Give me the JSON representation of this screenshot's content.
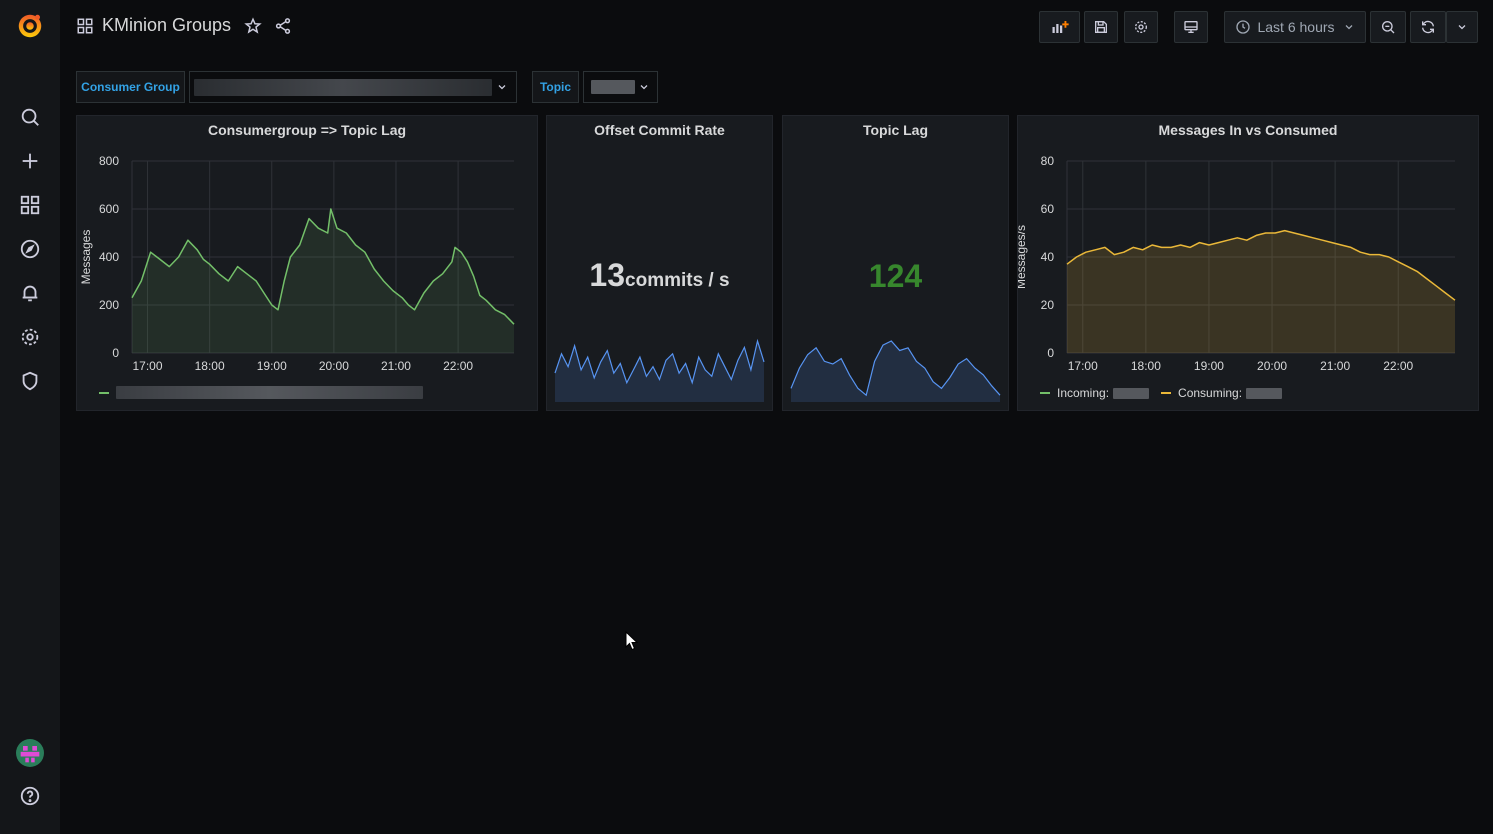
{
  "dashboard": {
    "title": "KMinion Groups"
  },
  "toolbar": {
    "time_range": "Last 6 hours"
  },
  "variables": {
    "consumer_group_label": "Consumer Group",
    "topic_label": "Topic"
  },
  "colors": {
    "lag_series": "#73bf69",
    "consume_series": "#eab839",
    "spark": "#5794f2",
    "value_green": "#37872d",
    "var_blue": "#33a2e5"
  },
  "panels": {
    "lag_chart": {
      "title": "Consumergroup => Topic Lag",
      "ylabel": "Messages"
    },
    "offset_commit": {
      "title": "Offset Commit Rate",
      "value": "13",
      "unit": "commits / s"
    },
    "topic_lag": {
      "title": "Topic Lag",
      "value": "124"
    },
    "messages_chart": {
      "title": "Messages In vs Consumed",
      "ylabel": "Messages/s",
      "legend_incoming": "Incoming:",
      "legend_consuming": "Consuming:"
    }
  },
  "chart_data": [
    {
      "type": "area",
      "title": "Consumergroup => Topic Lag",
      "ylabel": "Messages",
      "xticks": [
        "17:00",
        "18:00",
        "19:00",
        "20:00",
        "21:00",
        "22:00"
      ],
      "yticks": [
        "0",
        "200",
        "400",
        "600",
        "800"
      ],
      "ylim": [
        0,
        800
      ],
      "xlim": [
        16.75,
        22.9
      ],
      "grid": true,
      "series": [
        {
          "x": [
            16.75,
            16.9,
            17.05,
            17.2,
            17.35,
            17.5,
            17.65,
            17.8,
            17.9,
            18.0,
            18.15,
            18.3,
            18.45,
            18.6,
            18.75,
            18.9,
            19.0,
            19.1,
            19.2,
            19.3,
            19.45,
            19.6,
            19.75,
            19.9,
            19.95,
            20.05,
            20.2,
            20.35,
            20.5,
            20.65,
            20.8,
            20.95,
            21.1,
            21.2,
            21.3,
            21.45,
            21.6,
            21.75,
            21.9,
            21.95,
            22.05,
            22.15,
            22.25,
            22.35,
            22.45,
            22.6,
            22.75,
            22.9
          ],
          "values": [
            230,
            300,
            420,
            390,
            360,
            400,
            470,
            430,
            390,
            370,
            330,
            300,
            360,
            330,
            300,
            240,
            200,
            180,
            300,
            400,
            450,
            560,
            520,
            500,
            600,
            520,
            500,
            450,
            420,
            350,
            300,
            260,
            230,
            200,
            180,
            250,
            300,
            330,
            380,
            440,
            420,
            380,
            320,
            240,
            220,
            180,
            160,
            120
          ]
        }
      ]
    },
    {
      "type": "area",
      "title": "Messages In vs Consumed",
      "ylabel": "Messages/s",
      "xticks": [
        "17:00",
        "18:00",
        "19:00",
        "20:00",
        "21:00",
        "22:00"
      ],
      "yticks": [
        "0",
        "20",
        "40",
        "60",
        "80"
      ],
      "ylim": [
        0,
        80
      ],
      "xlim": [
        16.75,
        22.9
      ],
      "grid": true,
      "legend": "bottom-left",
      "series": [
        {
          "name": "Consuming",
          "x": [
            16.75,
            16.9,
            17.05,
            17.2,
            17.35,
            17.5,
            17.65,
            17.8,
            17.95,
            18.1,
            18.25,
            18.4,
            18.55,
            18.7,
            18.85,
            19.0,
            19.15,
            19.3,
            19.45,
            19.6,
            19.75,
            19.9,
            20.05,
            20.2,
            20.35,
            20.5,
            20.65,
            20.8,
            20.95,
            21.1,
            21.25,
            21.4,
            21.55,
            21.7,
            21.85,
            22.0,
            22.15,
            22.3,
            22.45,
            22.6,
            22.75,
            22.9
          ],
          "values": [
            37,
            40,
            42,
            43,
            44,
            41,
            42,
            44,
            43,
            45,
            44,
            44,
            45,
            44,
            46,
            45,
            46,
            47,
            48,
            47,
            49,
            50,
            50,
            51,
            50,
            49,
            48,
            47,
            46,
            45,
            44,
            42,
            41,
            41,
            40,
            38,
            36,
            34,
            31,
            28,
            25,
            22
          ]
        }
      ]
    },
    {
      "type": "area",
      "title": "Offset Commit Rate",
      "values": [
        18,
        30,
        22,
        35,
        20,
        28,
        15,
        25,
        32,
        18,
        24,
        12,
        20,
        28,
        16,
        22,
        14,
        26,
        30,
        18,
        24,
        12,
        28,
        20,
        16,
        30,
        22,
        14,
        26,
        34,
        20,
        38,
        25
      ]
    },
    {
      "type": "area",
      "title": "Topic Lag",
      "values": [
        10,
        25,
        35,
        40,
        30,
        28,
        32,
        20,
        10,
        5,
        30,
        42,
        45,
        38,
        40,
        30,
        25,
        15,
        10,
        18,
        28,
        32,
        25,
        20,
        12,
        5
      ]
    }
  ]
}
